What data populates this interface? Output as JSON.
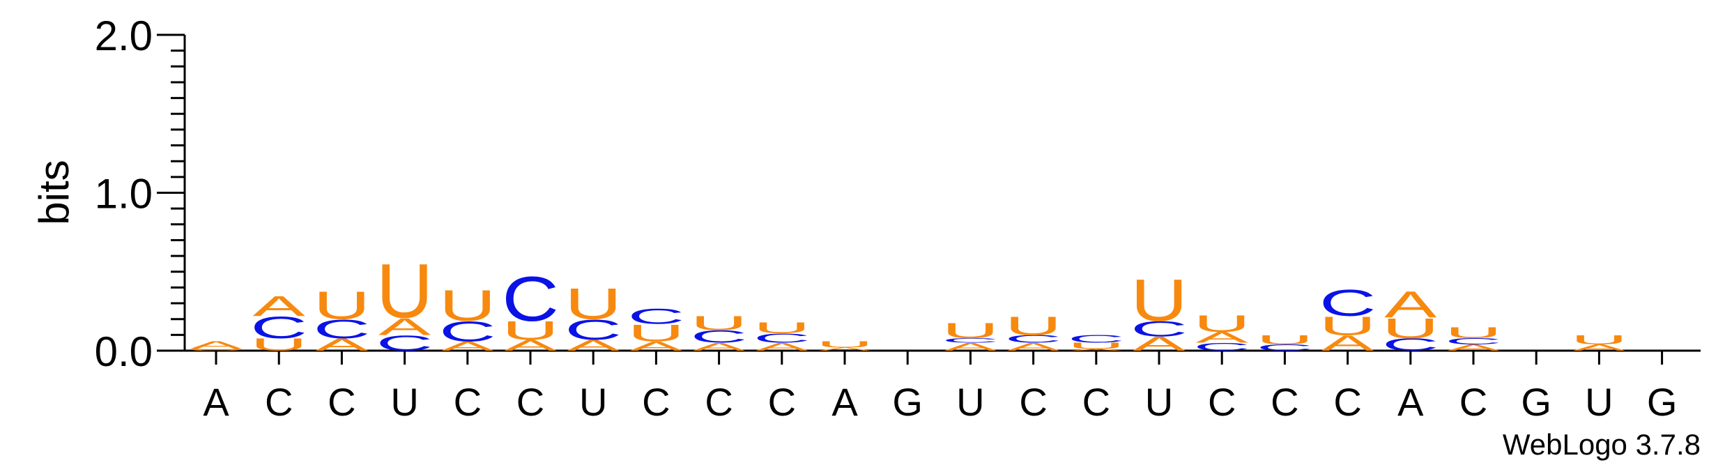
{
  "chart_data": {
    "type": "sequence-logo",
    "ylabel": "bits",
    "ylim": [
      0,
      2.0
    ],
    "yticks": [
      {
        "value": 0.0,
        "label": "0.0"
      },
      {
        "value": 1.0,
        "label": "1.0"
      },
      {
        "value": 2.0,
        "label": "2.0"
      }
    ],
    "footer": "WebLogo 3.7.8",
    "colors": {
      "A": "#f7890f",
      "U": "#f7890f",
      "C": "#0a12e6",
      "G": "#f7890f"
    },
    "positions": [
      {
        "label": "A",
        "stack": [
          {
            "letter": "U",
            "bits": 0.01
          },
          {
            "letter": "A",
            "bits": 0.05
          }
        ]
      },
      {
        "label": "C",
        "stack": [
          {
            "letter": "U",
            "bits": 0.08
          },
          {
            "letter": "C",
            "bits": 0.14
          },
          {
            "letter": "A",
            "bits": 0.13
          }
        ]
      },
      {
        "label": "C",
        "stack": [
          {
            "letter": "A",
            "bits": 0.08
          },
          {
            "letter": "C",
            "bits": 0.12
          },
          {
            "letter": "U",
            "bits": 0.18
          }
        ]
      },
      {
        "label": "U",
        "stack": [
          {
            "letter": "C",
            "bits": 0.1
          },
          {
            "letter": "A",
            "bits": 0.11
          },
          {
            "letter": "U",
            "bits": 0.35
          }
        ]
      },
      {
        "label": "C",
        "stack": [
          {
            "letter": "A",
            "bits": 0.06
          },
          {
            "letter": "C",
            "bits": 0.13
          },
          {
            "letter": "U",
            "bits": 0.2
          }
        ]
      },
      {
        "label": "C",
        "stack": [
          {
            "letter": "A",
            "bits": 0.07
          },
          {
            "letter": "U",
            "bits": 0.12
          },
          {
            "letter": "C",
            "bits": 0.29
          }
        ]
      },
      {
        "label": "U",
        "stack": [
          {
            "letter": "A",
            "bits": 0.07
          },
          {
            "letter": "C",
            "bits": 0.13
          },
          {
            "letter": "U",
            "bits": 0.2
          }
        ]
      },
      {
        "label": "C",
        "stack": [
          {
            "letter": "A",
            "bits": 0.06
          },
          {
            "letter": "U",
            "bits": 0.11
          },
          {
            "letter": "C",
            "bits": 0.1
          }
        ]
      },
      {
        "label": "C",
        "stack": [
          {
            "letter": "A",
            "bits": 0.05
          },
          {
            "letter": "C",
            "bits": 0.08
          },
          {
            "letter": "U",
            "bits": 0.09
          }
        ]
      },
      {
        "label": "C",
        "stack": [
          {
            "letter": "A",
            "bits": 0.05
          },
          {
            "letter": "C",
            "bits": 0.06
          },
          {
            "letter": "U",
            "bits": 0.07
          }
        ]
      },
      {
        "label": "A",
        "stack": [
          {
            "letter": "A",
            "bits": 0.02
          },
          {
            "letter": "U",
            "bits": 0.04
          }
        ]
      },
      {
        "label": "G",
        "stack": []
      },
      {
        "label": "U",
        "stack": [
          {
            "letter": "A",
            "bits": 0.05
          },
          {
            "letter": "C",
            "bits": 0.03
          },
          {
            "letter": "U",
            "bits": 0.1
          }
        ]
      },
      {
        "label": "C",
        "stack": [
          {
            "letter": "A",
            "bits": 0.05
          },
          {
            "letter": "C",
            "bits": 0.05
          },
          {
            "letter": "U",
            "bits": 0.12
          }
        ]
      },
      {
        "label": "C",
        "stack": [
          {
            "letter": "A",
            "bits": 0.01
          },
          {
            "letter": "U",
            "bits": 0.04
          },
          {
            "letter": "C",
            "bits": 0.05
          }
        ]
      },
      {
        "label": "U",
        "stack": [
          {
            "letter": "A",
            "bits": 0.09
          },
          {
            "letter": "C",
            "bits": 0.1
          },
          {
            "letter": "U",
            "bits": 0.27
          }
        ]
      },
      {
        "label": "C",
        "stack": [
          {
            "letter": "C",
            "bits": 0.05
          },
          {
            "letter": "A",
            "bits": 0.07
          },
          {
            "letter": "U",
            "bits": 0.11
          }
        ]
      },
      {
        "label": "C",
        "stack": [
          {
            "letter": "C",
            "bits": 0.04
          },
          {
            "letter": "U",
            "bits": 0.06
          }
        ]
      },
      {
        "label": "C",
        "stack": [
          {
            "letter": "A",
            "bits": 0.1
          },
          {
            "letter": "U",
            "bits": 0.12
          },
          {
            "letter": "C",
            "bits": 0.17
          }
        ]
      },
      {
        "label": "A",
        "stack": [
          {
            "letter": "C",
            "bits": 0.08
          },
          {
            "letter": "U",
            "bits": 0.13
          },
          {
            "letter": "A",
            "bits": 0.17
          }
        ]
      },
      {
        "label": "C",
        "stack": [
          {
            "letter": "A",
            "bits": 0.04
          },
          {
            "letter": "C",
            "bits": 0.04
          },
          {
            "letter": "U",
            "bits": 0.07
          }
        ]
      },
      {
        "label": "G",
        "stack": []
      },
      {
        "label": "U",
        "stack": [
          {
            "letter": "A",
            "bits": 0.04
          },
          {
            "letter": "U",
            "bits": 0.06
          }
        ]
      },
      {
        "label": "G",
        "stack": []
      }
    ]
  }
}
